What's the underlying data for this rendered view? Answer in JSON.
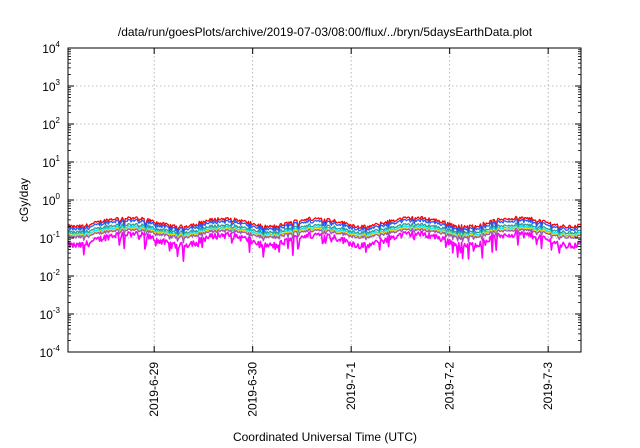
{
  "chart_data": {
    "type": "line",
    "title": "/data/run/goesPlots/archive/2019-07-03/08:00/flux/../bryn/5daysEarthData.plot",
    "xlabel": "Coordinated Universal Time (UTC)",
    "ylabel": "cGy/day",
    "yscale": "log",
    "ylim": [
      0.0001,
      10000
    ],
    "yticks": [
      {
        "base": "10",
        "exp": "-4"
      },
      {
        "base": "10",
        "exp": "-3"
      },
      {
        "base": "10",
        "exp": "-2"
      },
      {
        "base": "10",
        "exp": "-1"
      },
      {
        "base": "10",
        "exp": "0"
      },
      {
        "base": "10",
        "exp": "1"
      },
      {
        "base": "10",
        "exp": "2"
      },
      {
        "base": "10",
        "exp": "3"
      },
      {
        "base": "10",
        "exp": "4"
      }
    ],
    "xlim": [
      "2019-06-28 03:00",
      "2019-07-03 08:00"
    ],
    "xticks": [
      {
        "date": "2019-06-29 00:00",
        "label": "2019-6-29"
      },
      {
        "date": "2019-06-30 00:00",
        "label": "2019-6-30"
      },
      {
        "date": "2019-07-01 00:00",
        "label": "2019-7-1"
      },
      {
        "date": "2019-07-02 00:00",
        "label": "2019-7-2"
      },
      {
        "date": "2019-07-03 00:00",
        "label": "2019-7-3"
      }
    ],
    "grid": true,
    "legend": "none",
    "series": [
      {
        "color": "#ff0000",
        "base": 0.36,
        "depth": 0.45,
        "noise": 0.22
      },
      {
        "color": "#1e5cff",
        "base": 0.31,
        "depth": 0.45,
        "noise": 0.22
      },
      {
        "color": "#2a9d8f",
        "base": 0.24,
        "depth": 0.42,
        "noise": 0.2
      },
      {
        "color": "#00e5ff",
        "base": 0.21,
        "depth": 0.42,
        "noise": 0.2
      },
      {
        "color": "#f0e000",
        "base": 0.19,
        "depth": 0.4,
        "noise": 0.18
      },
      {
        "color": "#9b59b6",
        "base": 0.175,
        "depth": 0.4,
        "noise": 0.18
      },
      {
        "color": "#ff00ff",
        "base": 0.14,
        "depth": 0.55,
        "noise": 0.4
      }
    ],
    "dips": [
      "2019-06-28 05:00",
      "2019-06-29 06:00",
      "2019-06-30 04:00",
      "2019-07-01 03:00",
      "2019-07-02 04:00",
      "2019-07-03 05:00"
    ]
  }
}
